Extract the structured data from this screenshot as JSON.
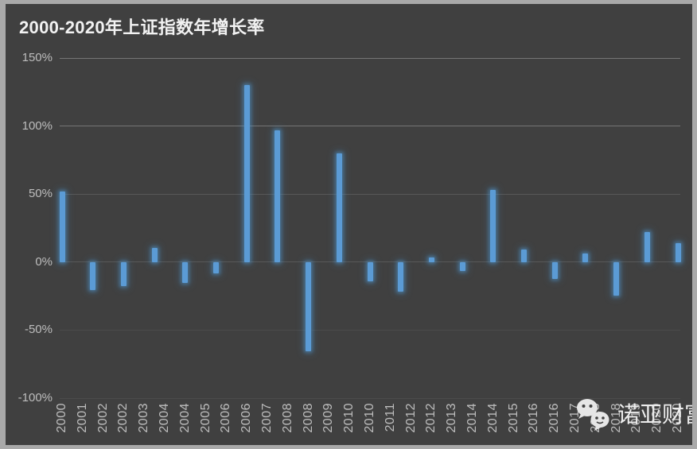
{
  "header": {
    "title": "2000-2020年上证指数年增长率"
  },
  "watermark": {
    "icon": "wechat-icon",
    "label": "诺亚财富"
  },
  "chart_data": {
    "type": "bar",
    "title": "2000-2020年上证指数年增长率",
    "xlabel": "",
    "ylabel": "",
    "unit": "%",
    "categories": [
      2000,
      2001,
      2002,
      2003,
      2004,
      2005,
      2006,
      2007,
      2008,
      2009,
      2010,
      2011,
      2012,
      2013,
      2014,
      2015,
      2016,
      2017,
      2018,
      2019,
      2020
    ],
    "values": [
      51.7,
      -20.6,
      -17.5,
      10.3,
      -15.4,
      -8.3,
      130.4,
      96.7,
      -65.4,
      80.0,
      -14.3,
      -21.7,
      3.2,
      -6.7,
      52.9,
      9.4,
      -12.3,
      6.6,
      -24.6,
      22.3,
      13.9
    ],
    "ylim": [
      -100,
      150
    ],
    "yticks": [
      {
        "label": "150%",
        "value": 150
      },
      {
        "label": "100%",
        "value": 100
      },
      {
        "label": "50%",
        "value": 50
      },
      {
        "label": "0%",
        "value": 0
      },
      {
        "label": "-50%",
        "value": -50
      },
      {
        "label": "-100%",
        "value": -100
      }
    ],
    "xtick_labels": [
      "2000",
      "2001",
      "2002",
      "2002",
      "2003",
      "2004",
      "2004",
      "2005",
      "2006",
      "2006",
      "2007",
      "2008",
      "2008",
      "2009",
      "2010",
      "2010",
      "2011",
      "2012",
      "2012",
      "2013",
      "2014",
      "2014",
      "2015",
      "2016",
      "2016",
      "2017",
      "2018",
      "2018",
      "2019",
      "2020",
      "2020"
    ],
    "bar_color": "#5B9BD5",
    "background": "#404040",
    "grid": true,
    "legend": false
  }
}
